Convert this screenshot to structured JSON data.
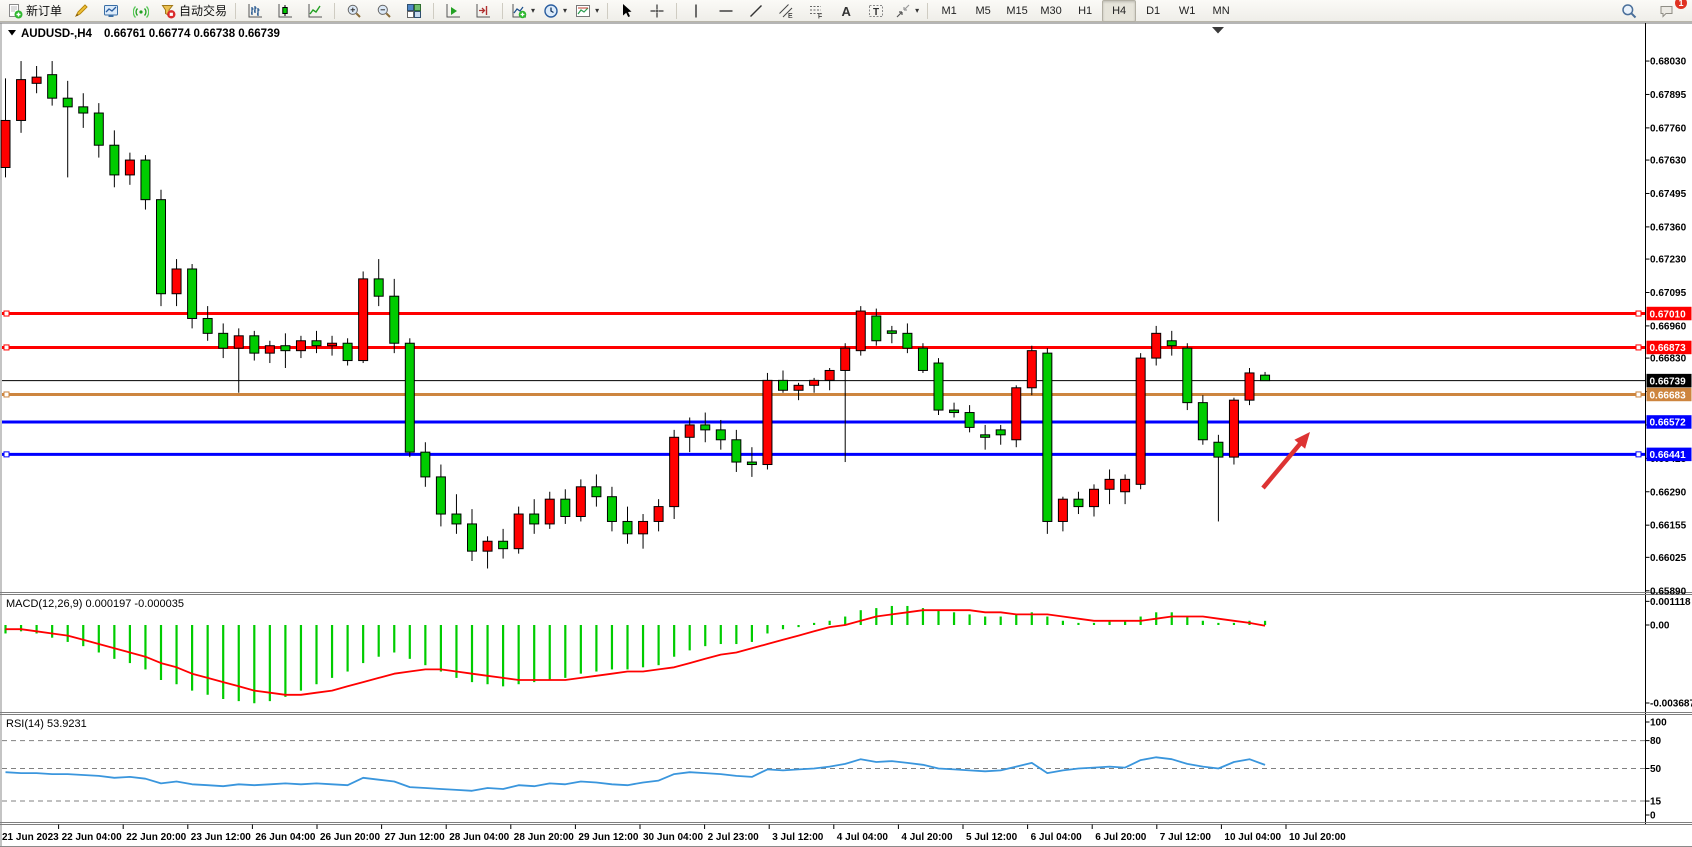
{
  "window": {
    "symbol": "AUDUSD-,H4",
    "ohlc": "0.66761 0.66774 0.66738 0.66739",
    "open": "0.66761",
    "high": "0.66774",
    "low": "0.66738",
    "close": "0.66739"
  },
  "toolbar": {
    "groups": [
      {
        "items": [
          {
            "name": "new-order-button",
            "icon": "doc-plus",
            "label": "新订单"
          },
          {
            "name": "styler-button",
            "icon": "crayon"
          },
          {
            "name": "mql-community-button",
            "icon": "monitor-chart"
          },
          {
            "name": "signals-button",
            "icon": "signal-waves"
          },
          {
            "name": "autotrade-button",
            "icon": "autotrade-stop",
            "label": "自动交易"
          }
        ]
      },
      {
        "items": [
          {
            "name": "bar-chart-button",
            "icon": "bars-chart"
          },
          {
            "name": "candle-chart-button",
            "icon": "candle-chart"
          },
          {
            "name": "line-chart-button",
            "icon": "line-chart"
          }
        ]
      },
      {
        "items": [
          {
            "name": "zoom-in-button",
            "icon": "zoom-in"
          },
          {
            "name": "zoom-out-button",
            "icon": "zoom-out"
          },
          {
            "name": "tile-windows-button",
            "icon": "tile-windows"
          }
        ]
      },
      {
        "items": [
          {
            "name": "auto-scroll-button",
            "icon": "auto-scroll"
          },
          {
            "name": "chart-shift-button",
            "icon": "chart-shift"
          }
        ]
      },
      {
        "items": [
          {
            "name": "indicators-button",
            "icon": "indicator-add",
            "dropdown": true
          },
          {
            "name": "periods-button",
            "icon": "clock",
            "dropdown": true
          },
          {
            "name": "templates-button",
            "icon": "template-chart",
            "dropdown": true
          }
        ]
      },
      {
        "items": [
          {
            "name": "cursor-button",
            "icon": "cursor-arrow"
          },
          {
            "name": "crosshair-button",
            "icon": "crosshair"
          }
        ]
      },
      {
        "items": [
          {
            "name": "vertical-line-button",
            "icon": "vertical-line"
          },
          {
            "name": "horizontal-line-button",
            "icon": "horizontal-line"
          },
          {
            "name": "trendline-button",
            "icon": "trend-line"
          },
          {
            "name": "equidistant-channel-button",
            "icon": "channel"
          },
          {
            "name": "fibonacci-button",
            "icon": "fibonacci"
          },
          {
            "name": "text-button",
            "icon": "text-a"
          },
          {
            "name": "label-button",
            "icon": "label-t"
          },
          {
            "name": "arrows-button",
            "icon": "arrows",
            "dropdown": true
          }
        ]
      },
      {
        "type": "timeframes",
        "items": [
          {
            "name": "tf-m1",
            "label": "M1"
          },
          {
            "name": "tf-m5",
            "label": "M5"
          },
          {
            "name": "tf-m15",
            "label": "M15"
          },
          {
            "name": "tf-m30",
            "label": "M30"
          },
          {
            "name": "tf-h1",
            "label": "H1"
          },
          {
            "name": "tf-h4",
            "label": "H4",
            "active": true
          },
          {
            "name": "tf-d1",
            "label": "D1"
          },
          {
            "name": "tf-w1",
            "label": "W1"
          },
          {
            "name": "tf-mn",
            "label": "MN"
          }
        ]
      }
    ],
    "right_items": [
      {
        "name": "search-button",
        "icon": "search"
      },
      {
        "name": "notifications-button",
        "icon": "chat-badge",
        "badge": "1"
      }
    ]
  },
  "price_axis": {
    "top_price": 0.68111,
    "bottom_price": 0.65885,
    "ticks": [
      "0.68030",
      "0.67895",
      "0.67760",
      "0.67630",
      "0.67495",
      "0.67360",
      "0.67230",
      "0.67095",
      "0.66960",
      "0.66830",
      "0.66695",
      "0.66560",
      "0.66425",
      "0.66290",
      "0.66155",
      "0.66025",
      "0.65890"
    ]
  },
  "hlines": [
    {
      "label": "0.67010",
      "value": 0.6701,
      "color": "#FF0000",
      "width": 3,
      "handles": true
    },
    {
      "label": "0.66873",
      "value": 0.66873,
      "color": "#FF0000",
      "width": 3,
      "handles": true
    },
    {
      "label": "0.66739",
      "value": 0.66739,
      "color": "#000000",
      "width": 1,
      "handles": false
    },
    {
      "label": "0.66683",
      "value": 0.66683,
      "color": "#CD853F",
      "width": 3,
      "handles": true
    },
    {
      "label": "0.66572",
      "value": 0.66572,
      "color": "#0000FF",
      "width": 3,
      "handles": false
    },
    {
      "label": "0.66441",
      "value": 0.66441,
      "color": "#0000FF",
      "width": 3,
      "handles": true
    }
  ],
  "panels": {
    "macd": {
      "text": "MACD(12,26,9) 0.000197 -0.000035",
      "name": "MACD",
      "params": "12,26,9",
      "value_main": "0.000197",
      "value_signal": "-0.000035",
      "ticks": [
        {
          "label": "0.001118",
          "v": 0.001118
        },
        {
          "label": "0.00",
          "v": 0
        },
        {
          "label": "-0.003687",
          "v": -0.003687
        }
      ]
    },
    "rsi": {
      "text": "RSI(14) 53.9231",
      "name": "RSI",
      "params": "14",
      "value": "53.9231",
      "ticks": [
        {
          "label": "100",
          "v": 100
        },
        {
          "label": "80",
          "v": 80
        },
        {
          "label": "50",
          "v": 50
        },
        {
          "label": "15",
          "v": 15
        },
        {
          "label": "0",
          "v": 0
        }
      ],
      "levels": [
        80,
        50,
        15
      ]
    }
  },
  "time_axis": {
    "labels": [
      "21 Jun 2023",
      "22 Jun 04:00",
      "22 Jun 20:00",
      "23 Jun 12:00",
      "26 Jun 04:00",
      "26 Jun 20:00",
      "27 Jun 12:00",
      "28 Jun 04:00",
      "28 Jun 20:00",
      "29 Jun 12:00",
      "30 Jun 04:00",
      "2 Jul 23:00",
      "3 Jul 12:00",
      "4 Jul 04:00",
      "4 Jul 20:00",
      "5 Jul 12:00",
      "6 Jul 04:00",
      "6 Jul 20:00",
      "7 Jul 12:00",
      "10 Jul 04:00",
      "10 Jul 20:00"
    ]
  },
  "annotation_arrow": {
    "color": "#DD3333",
    "tail": [
      1263,
      488
    ],
    "head": [
      1310,
      432
    ]
  },
  "colors": {
    "bull_candle": "#FF0000",
    "bear_candle": "#00CC00",
    "wick": "#000000",
    "macd_hist": "#00CC00",
    "macd_signal": "#FF0000",
    "rsi_line": "#3A96DD",
    "level_dash": "#808080",
    "axis_line": "#000000",
    "frame": "#808080"
  },
  "chart_data": [
    {
      "type": "candlestick",
      "symbol": "AUDUSD-",
      "timeframe": "H4",
      "title": "AUDUSD-,H4",
      "ylim": [
        0.65885,
        0.68111
      ],
      "note": "red = bullish, green = bearish (CN color scheme); values [open,high,low,close]",
      "candles": [
        [
          0.676,
          0.6796,
          0.6756,
          0.6779
        ],
        [
          0.6779,
          0.6803,
          0.6774,
          0.67955
        ],
        [
          0.6794,
          0.6801,
          0.679,
          0.67965
        ],
        [
          0.67975,
          0.6803,
          0.6785,
          0.6788
        ],
        [
          0.6788,
          0.6795,
          0.6756,
          0.67845
        ],
        [
          0.67845,
          0.679,
          0.6776,
          0.6782
        ],
        [
          0.6782,
          0.6786,
          0.6764,
          0.6769
        ],
        [
          0.6769,
          0.6775,
          0.6752,
          0.6757
        ],
        [
          0.6757,
          0.6766,
          0.6753,
          0.6763
        ],
        [
          0.6763,
          0.6765,
          0.6743,
          0.6747
        ],
        [
          0.6747,
          0.6751,
          0.6704,
          0.6709
        ],
        [
          0.6709,
          0.6723,
          0.6704,
          0.6719
        ],
        [
          0.6719,
          0.6721,
          0.6695,
          0.6699
        ],
        [
          0.6699,
          0.6704,
          0.669,
          0.6693
        ],
        [
          0.6693,
          0.6697,
          0.6683,
          0.6687
        ],
        [
          0.6687,
          0.6695,
          0.6669,
          0.6692
        ],
        [
          0.6692,
          0.6694,
          0.6682,
          0.6685
        ],
        [
          0.6685,
          0.669,
          0.6681,
          0.6688
        ],
        [
          0.6688,
          0.6693,
          0.6679,
          0.6686
        ],
        [
          0.6686,
          0.6692,
          0.6683,
          0.669
        ],
        [
          0.669,
          0.6694,
          0.6685,
          0.6688
        ],
        [
          0.6688,
          0.6692,
          0.6684,
          0.6689
        ],
        [
          0.6689,
          0.6691,
          0.668,
          0.6682
        ],
        [
          0.6682,
          0.6718,
          0.6681,
          0.6715
        ],
        [
          0.6715,
          0.6723,
          0.6704,
          0.6708
        ],
        [
          0.6708,
          0.6715,
          0.6685,
          0.6689
        ],
        [
          0.6689,
          0.6691,
          0.6643,
          0.6645
        ],
        [
          0.6645,
          0.6649,
          0.6631,
          0.6635
        ],
        [
          0.6635,
          0.664,
          0.6615,
          0.662
        ],
        [
          0.662,
          0.6628,
          0.6612,
          0.6616
        ],
        [
          0.6616,
          0.6622,
          0.6601,
          0.6605
        ],
        [
          0.6605,
          0.6611,
          0.6598,
          0.6609
        ],
        [
          0.6609,
          0.6614,
          0.6602,
          0.6606
        ],
        [
          0.6606,
          0.6623,
          0.6604,
          0.662
        ],
        [
          0.662,
          0.6626,
          0.6612,
          0.6616
        ],
        [
          0.6616,
          0.6629,
          0.6614,
          0.6626
        ],
        [
          0.6626,
          0.663,
          0.6616,
          0.6619
        ],
        [
          0.6619,
          0.6634,
          0.6617,
          0.6631
        ],
        [
          0.6631,
          0.6636,
          0.6623,
          0.6627
        ],
        [
          0.6627,
          0.6631,
          0.6613,
          0.6617
        ],
        [
          0.6617,
          0.6623,
          0.6608,
          0.6612
        ],
        [
          0.6612,
          0.662,
          0.6606,
          0.6617
        ],
        [
          0.6617,
          0.6626,
          0.6613,
          0.6623
        ],
        [
          0.6623,
          0.6654,
          0.6618,
          0.6651
        ],
        [
          0.6651,
          0.6659,
          0.6645,
          0.6656
        ],
        [
          0.6656,
          0.6661,
          0.6649,
          0.6654
        ],
        [
          0.6654,
          0.6658,
          0.6646,
          0.665
        ],
        [
          0.665,
          0.6654,
          0.6637,
          0.6641
        ],
        [
          0.6641,
          0.6647,
          0.6635,
          0.664
        ],
        [
          0.664,
          0.6677,
          0.6638,
          0.6674
        ],
        [
          0.6674,
          0.6678,
          0.6669,
          0.667
        ],
        [
          0.667,
          0.6673,
          0.6666,
          0.6672
        ],
        [
          0.6672,
          0.6675,
          0.6669,
          0.6674
        ],
        [
          0.6674,
          0.6679,
          0.667,
          0.6678
        ],
        [
          0.6678,
          0.6689,
          0.6641,
          0.6687
        ],
        [
          0.6686,
          0.6704,
          0.6684,
          0.6702
        ],
        [
          0.67,
          0.6703,
          0.6688,
          0.669
        ],
        [
          0.6694,
          0.6696,
          0.6689,
          0.6693
        ],
        [
          0.6693,
          0.6697,
          0.6685,
          0.6687
        ],
        [
          0.6687,
          0.6689,
          0.6677,
          0.6678
        ],
        [
          0.6681,
          0.6683,
          0.666,
          0.6662
        ],
        [
          0.6662,
          0.6665,
          0.6659,
          0.6661
        ],
        [
          0.6661,
          0.6664,
          0.6653,
          0.6655
        ],
        [
          0.6652,
          0.6656,
          0.6646,
          0.6651
        ],
        [
          0.6654,
          0.6656,
          0.6648,
          0.6652
        ],
        [
          0.665,
          0.6672,
          0.6647,
          0.6671
        ],
        [
          0.6671,
          0.6688,
          0.6668,
          0.6686
        ],
        [
          0.6685,
          0.6687,
          0.6612,
          0.6617
        ],
        [
          0.6617,
          0.6627,
          0.6613,
          0.6626
        ],
        [
          0.6626,
          0.6629,
          0.662,
          0.6623
        ],
        [
          0.6623,
          0.6632,
          0.6619,
          0.663
        ],
        [
          0.663,
          0.6638,
          0.6624,
          0.6634
        ],
        [
          0.6629,
          0.6636,
          0.6624,
          0.6634
        ],
        [
          0.6632,
          0.6685,
          0.663,
          0.6683
        ],
        [
          0.6683,
          0.6696,
          0.668,
          0.6693
        ],
        [
          0.669,
          0.6694,
          0.6684,
          0.6688
        ],
        [
          0.6687,
          0.6689,
          0.6662,
          0.6665
        ],
        [
          0.6665,
          0.6668,
          0.6648,
          0.665
        ],
        [
          0.6649,
          0.6652,
          0.6617,
          0.6643
        ],
        [
          0.6643,
          0.6667,
          0.664,
          0.6666
        ],
        [
          0.6666,
          0.6679,
          0.6664,
          0.6677
        ],
        [
          0.66761,
          0.66774,
          0.66738,
          0.66739
        ]
      ]
    },
    {
      "type": "bar",
      "name": "MACD",
      "params": "12,26,9",
      "ylim": [
        -0.004113,
        0.001467
      ],
      "values": [
        -0.0004,
        -0.0003,
        -0.0004,
        -0.0006,
        -0.0008,
        -0.001,
        -0.0013,
        -0.0016,
        -0.0018,
        -0.0021,
        -0.0026,
        -0.0028,
        -0.0031,
        -0.0033,
        -0.0035,
        -0.0036,
        -0.0037,
        -0.0036,
        -0.0034,
        -0.0031,
        -0.0028,
        -0.0025,
        -0.0022,
        -0.0018,
        -0.0015,
        -0.0013,
        -0.0016,
        -0.0019,
        -0.0022,
        -0.0025,
        -0.0027,
        -0.0028,
        -0.0029,
        -0.0028,
        -0.0027,
        -0.0026,
        -0.0025,
        -0.0023,
        -0.0022,
        -0.0021,
        -0.0021,
        -0.002,
        -0.0019,
        -0.0015,
        -0.0012,
        -0.001,
        -0.0009,
        -0.0009,
        -0.0008,
        -0.0004,
        -0.0002,
        -0.0001,
        0.0001,
        0.0002,
        0.0004,
        0.0007,
        0.0008,
        0.0009,
        0.0009,
        0.0008,
        0.0007,
        0.0006,
        0.0005,
        0.0004,
        0.0004,
        0.0005,
        0.0006,
        0.0004,
        0.0002,
        0.0001,
        0.0001,
        0.0002,
        0.0002,
        0.0004,
        0.0006,
        0.0006,
        0.0004,
        0.0002,
        0.0001,
        0.0001,
        0.0002,
        0.000197
      ],
      "signal": [
        -0.0002,
        -0.0002,
        -0.0003,
        -0.0004,
        -0.0005,
        -0.0007,
        -0.0009,
        -0.0011,
        -0.0013,
        -0.0015,
        -0.0018,
        -0.002,
        -0.0023,
        -0.0025,
        -0.0027,
        -0.0029,
        -0.0031,
        -0.0032,
        -0.0033,
        -0.0033,
        -0.0032,
        -0.0031,
        -0.0029,
        -0.0027,
        -0.0025,
        -0.0023,
        -0.0022,
        -0.0021,
        -0.0021,
        -0.0022,
        -0.0023,
        -0.0024,
        -0.0025,
        -0.0026,
        -0.0026,
        -0.0026,
        -0.0026,
        -0.0025,
        -0.0024,
        -0.0023,
        -0.0022,
        -0.0022,
        -0.0021,
        -0.002,
        -0.0018,
        -0.0016,
        -0.0014,
        -0.0013,
        -0.0011,
        -0.0009,
        -0.0007,
        -0.0005,
        -0.0003,
        -0.0001,
        0.0,
        0.0002,
        0.0004,
        0.0005,
        0.0006,
        0.0007,
        0.0007,
        0.0007,
        0.0007,
        0.0006,
        0.0006,
        0.0005,
        0.0005,
        0.0005,
        0.0004,
        0.0003,
        0.0002,
        0.0002,
        0.0002,
        0.0002,
        0.0003,
        0.0004,
        0.0004,
        0.0004,
        0.0003,
        0.0002,
        0.0001,
        -3.5e-05
      ]
    },
    {
      "type": "line",
      "name": "RSI",
      "params": "14",
      "ylim": [
        0,
        100
      ],
      "values": [
        46,
        45,
        45,
        44,
        44,
        43,
        42,
        40,
        41,
        39,
        34,
        36,
        33,
        32,
        31,
        33,
        32,
        33,
        34,
        33,
        34,
        33,
        32,
        40,
        38,
        36,
        30,
        29,
        28,
        27,
        26,
        29,
        28,
        32,
        31,
        34,
        33,
        36,
        35,
        33,
        32,
        35,
        37,
        44,
        46,
        45,
        44,
        42,
        41,
        49,
        48,
        49,
        50,
        52,
        55,
        60,
        57,
        58,
        56,
        54,
        50,
        49,
        48,
        47,
        48,
        52,
        56,
        45,
        48,
        50,
        51,
        52,
        51,
        59,
        62,
        60,
        55,
        52,
        50,
        57,
        60,
        53.92
      ]
    }
  ]
}
